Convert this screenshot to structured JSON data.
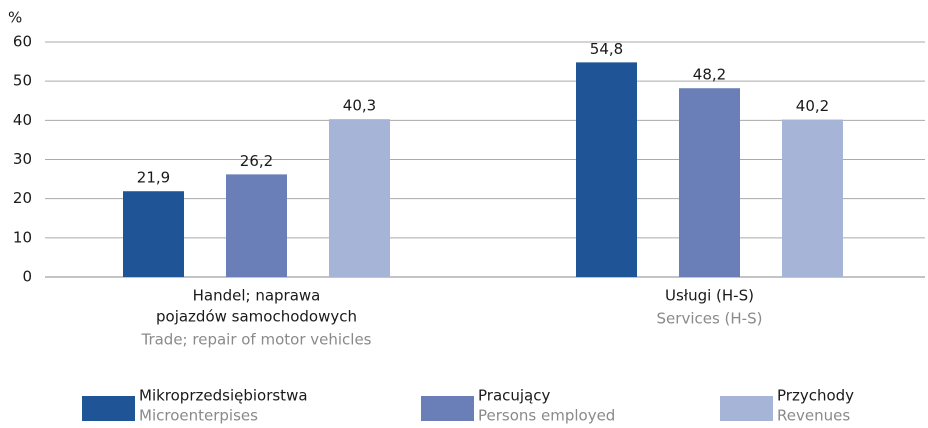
{
  "chart_data": {
    "type": "bar",
    "y_axis_label": "%",
    "categories": [
      [
        "Handel; naprawa",
        "pojazdów samochodowych"
      ],
      [
        "Usługi (H-S)"
      ]
    ],
    "categories_en": [
      "Trade; repair of motor vehicles",
      "Services (H-S)"
    ],
    "series": [
      {
        "name": "Mikroprzedsiębiorstwa",
        "name_en": "Microenterpises",
        "color": "#1f5597",
        "values": [
          21.9,
          54.8
        ],
        "value_labels": [
          "21,9",
          "54,8"
        ]
      },
      {
        "name": "Pracujący",
        "name_en": "Persons employed",
        "color": "#6a7fb8",
        "values": [
          26.2,
          48.2
        ],
        "value_labels": [
          "26,2",
          "48,2"
        ]
      },
      {
        "name": "Przychody",
        "name_en": "Revenues",
        "color": "#a6b4d8",
        "values": [
          40.3,
          40.2
        ],
        "value_labels": [
          "40,3",
          "40,2"
        ]
      }
    ],
    "ylim": [
      0,
      60
    ],
    "yticks": [
      0,
      10,
      20,
      30,
      40,
      50,
      60
    ],
    "grid": true
  }
}
